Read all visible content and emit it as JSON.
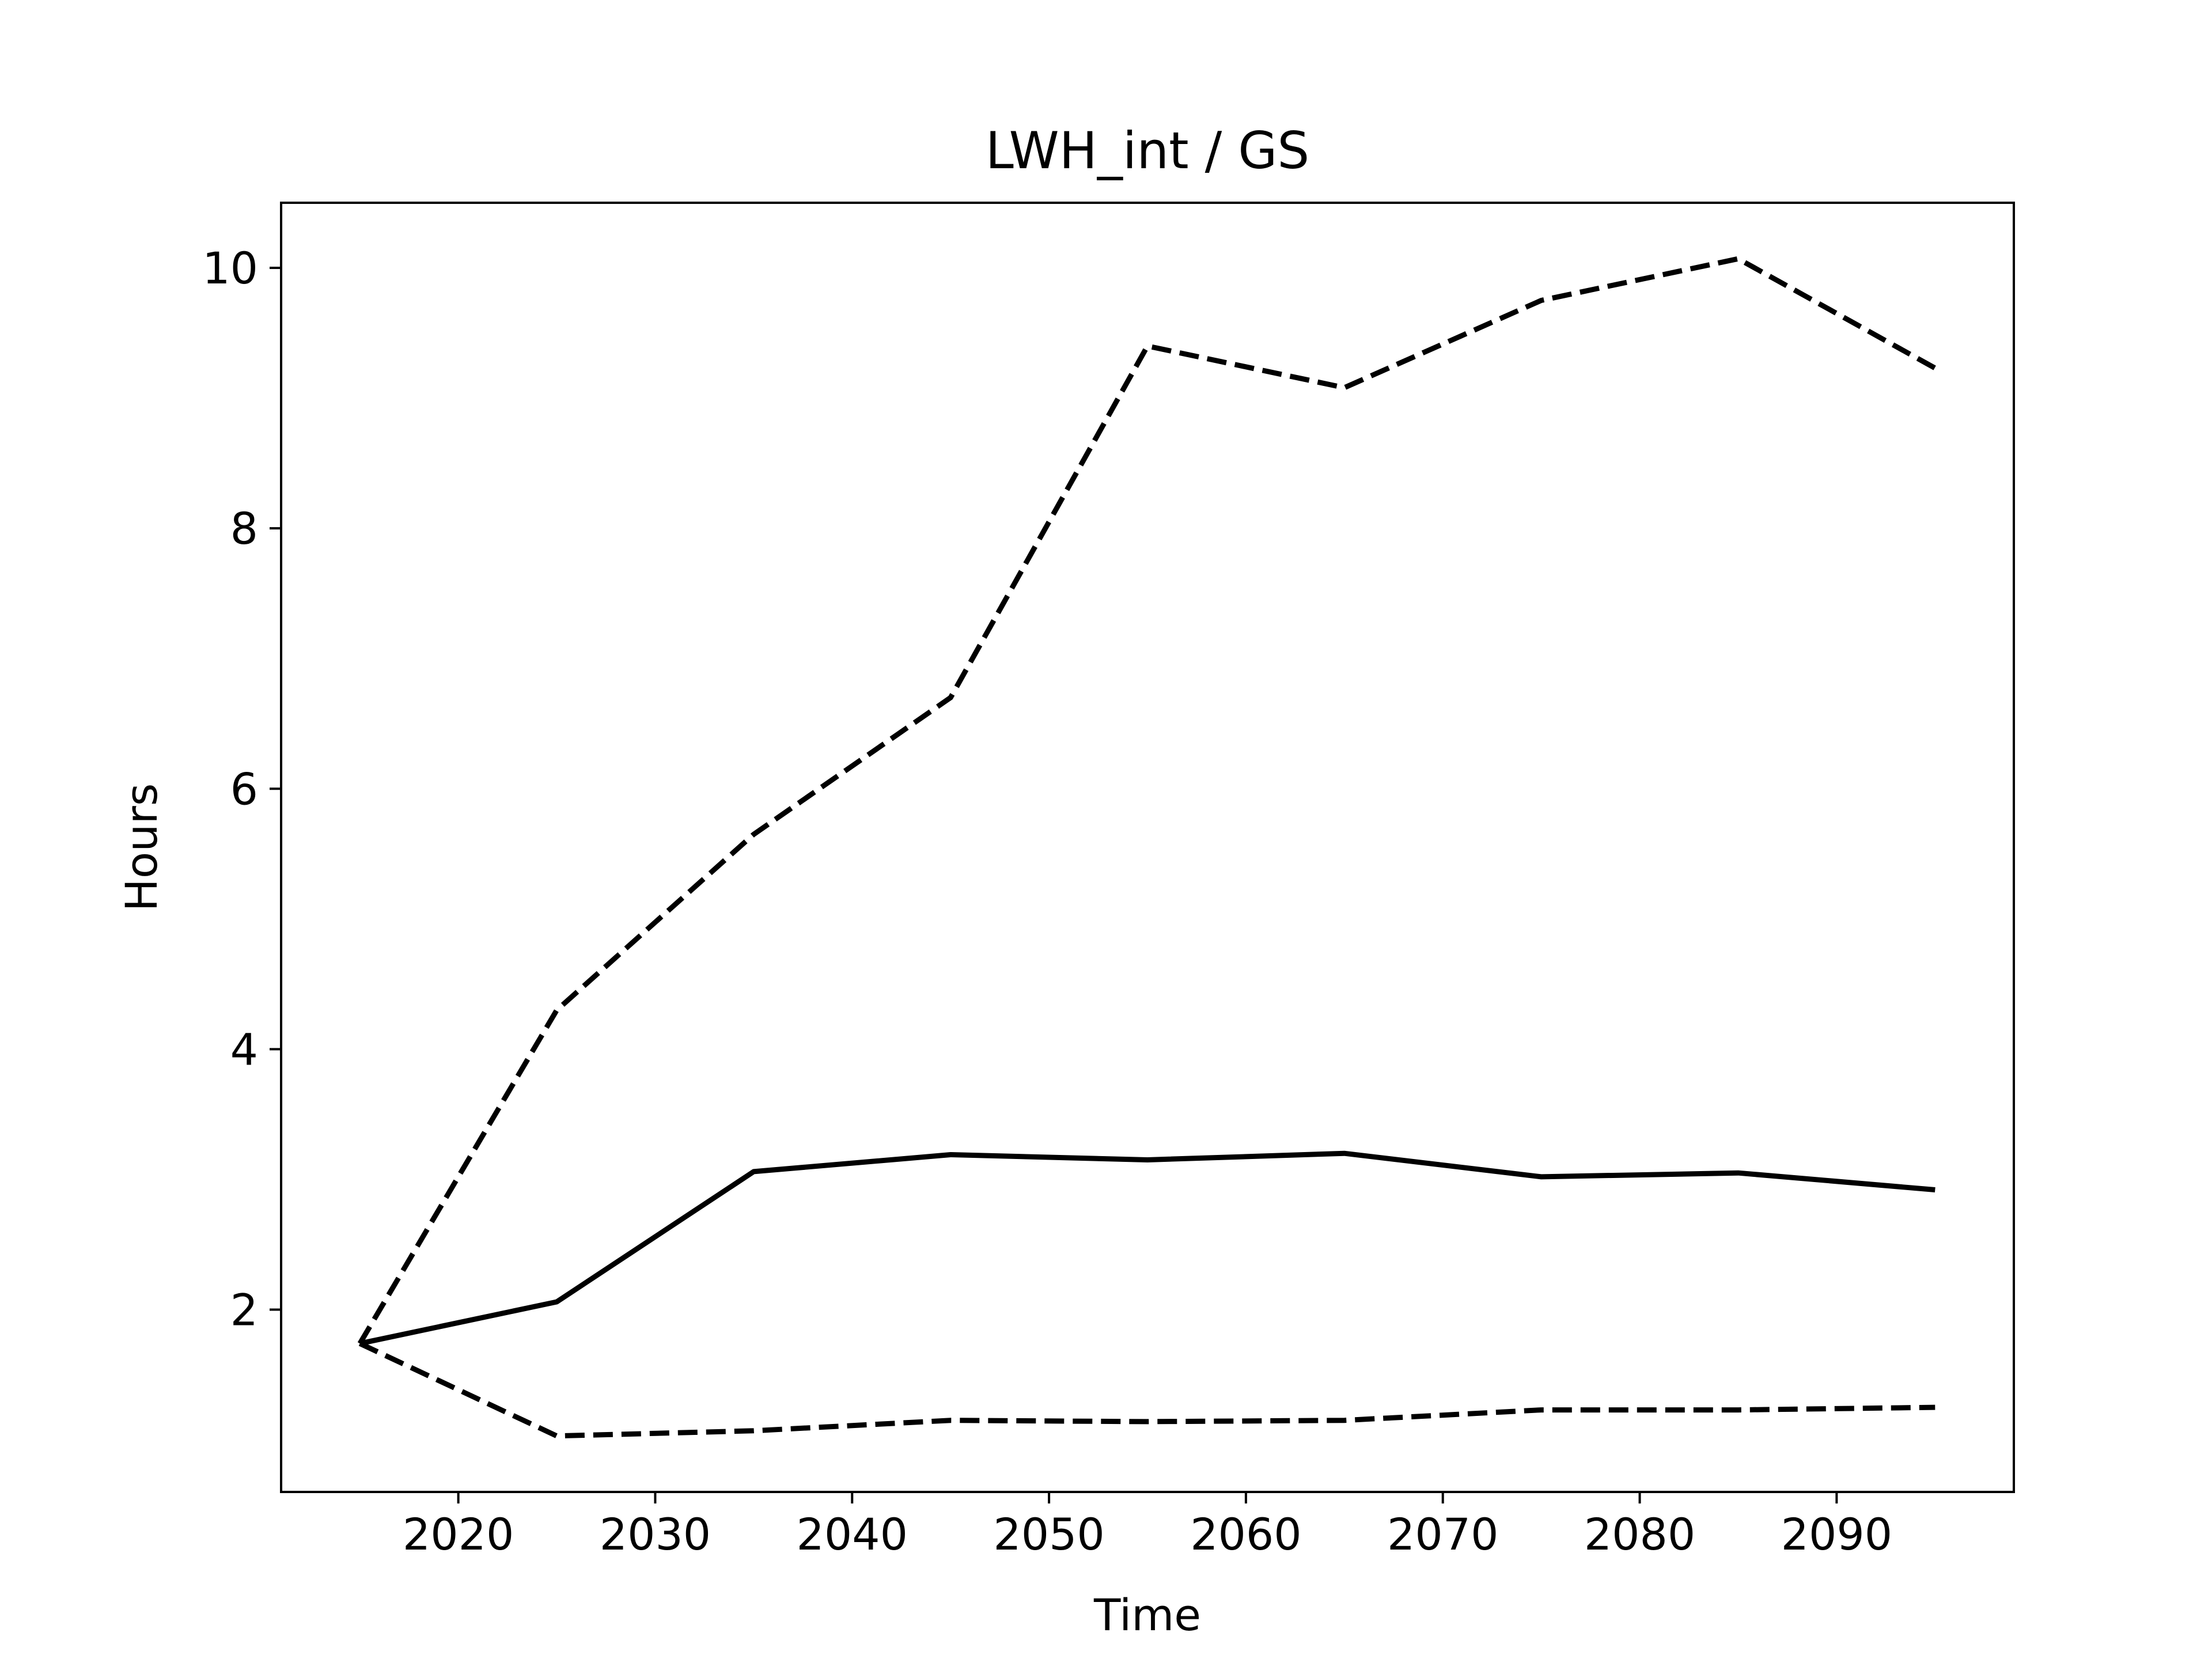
{
  "chart_data": {
    "type": "line",
    "title": "LWH_int / GS",
    "xlabel": "Time",
    "ylabel": "Hours",
    "xlim": [
      2011,
      2099
    ],
    "ylim": [
      0.6,
      10.5
    ],
    "xticks": [
      2020,
      2030,
      2040,
      2050,
      2060,
      2070,
      2080,
      2090
    ],
    "yticks": [
      2,
      4,
      6,
      8,
      10
    ],
    "grid": false,
    "legend": "none",
    "x": [
      2015,
      2025,
      2035,
      2045,
      2055,
      2065,
      2075,
      2085,
      2095
    ],
    "series": [
      {
        "style": "solid",
        "color": "#000000",
        "values": [
          1.74,
          2.06,
          3.06,
          3.19,
          3.15,
          3.2,
          3.02,
          3.05,
          2.92
        ]
      },
      {
        "style": "dashed",
        "color": "#000000",
        "values": [
          1.74,
          4.3,
          5.65,
          6.7,
          9.4,
          9.08,
          9.75,
          10.07,
          9.23
        ]
      },
      {
        "style": "dashed",
        "color": "#000000",
        "values": [
          1.74,
          1.03,
          1.07,
          1.15,
          1.14,
          1.15,
          1.23,
          1.23,
          1.25
        ]
      }
    ]
  }
}
